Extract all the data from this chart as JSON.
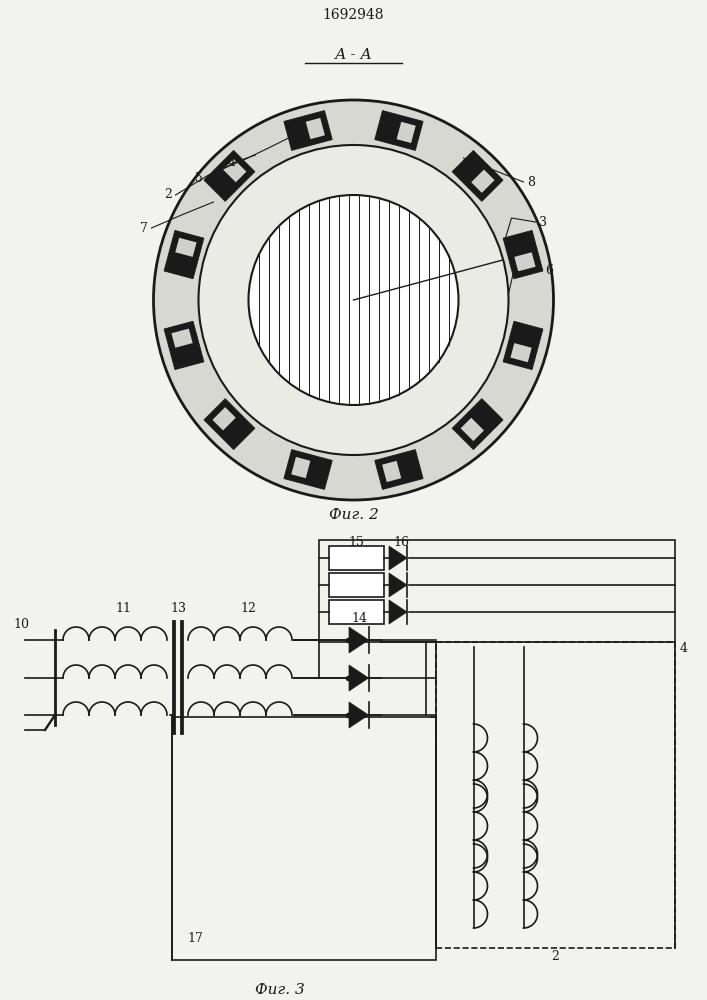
{
  "title": "1692948",
  "fig2_label": "А - А",
  "fig2_caption": "Фиг. 2",
  "fig3_caption": "Фиг. 3",
  "bg_color": "#f2f2ee",
  "line_color": "#1a1a1a"
}
